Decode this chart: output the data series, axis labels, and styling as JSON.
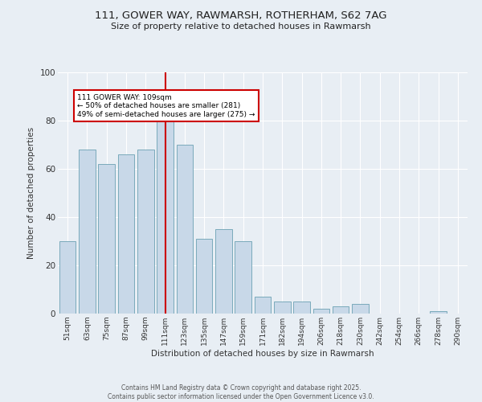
{
  "title1": "111, GOWER WAY, RAWMARSH, ROTHERHAM, S62 7AG",
  "title2": "Size of property relative to detached houses in Rawmarsh",
  "xlabel": "Distribution of detached houses by size in Rawmarsh",
  "ylabel": "Number of detached properties",
  "categories": [
    "51sqm",
    "63sqm",
    "75sqm",
    "87sqm",
    "99sqm",
    "111sqm",
    "123sqm",
    "135sqm",
    "147sqm",
    "159sqm",
    "171sqm",
    "182sqm",
    "194sqm",
    "206sqm",
    "218sqm",
    "230sqm",
    "242sqm",
    "254sqm",
    "266sqm",
    "278sqm",
    "290sqm"
  ],
  "values": [
    30,
    68,
    62,
    66,
    68,
    84,
    70,
    31,
    35,
    30,
    7,
    5,
    5,
    2,
    3,
    4,
    0,
    0,
    0,
    1,
    0
  ],
  "bar_color": "#c8d8e8",
  "bar_edge_color": "#7aaabb",
  "redline_index": 5,
  "annotation_text": "111 GOWER WAY: 109sqm\n← 50% of detached houses are smaller (281)\n49% of semi-detached houses are larger (275) →",
  "annotation_box_color": "#ffffff",
  "annotation_box_edge": "#cc0000",
  "redline_color": "#cc0000",
  "bg_color": "#e8eef4",
  "grid_color": "#ffffff",
  "footer1": "Contains HM Land Registry data © Crown copyright and database right 2025.",
  "footer2": "Contains public sector information licensed under the Open Government Licence v3.0.",
  "ylim": [
    0,
    100
  ],
  "yticks": [
    0,
    20,
    40,
    60,
    80,
    100
  ]
}
